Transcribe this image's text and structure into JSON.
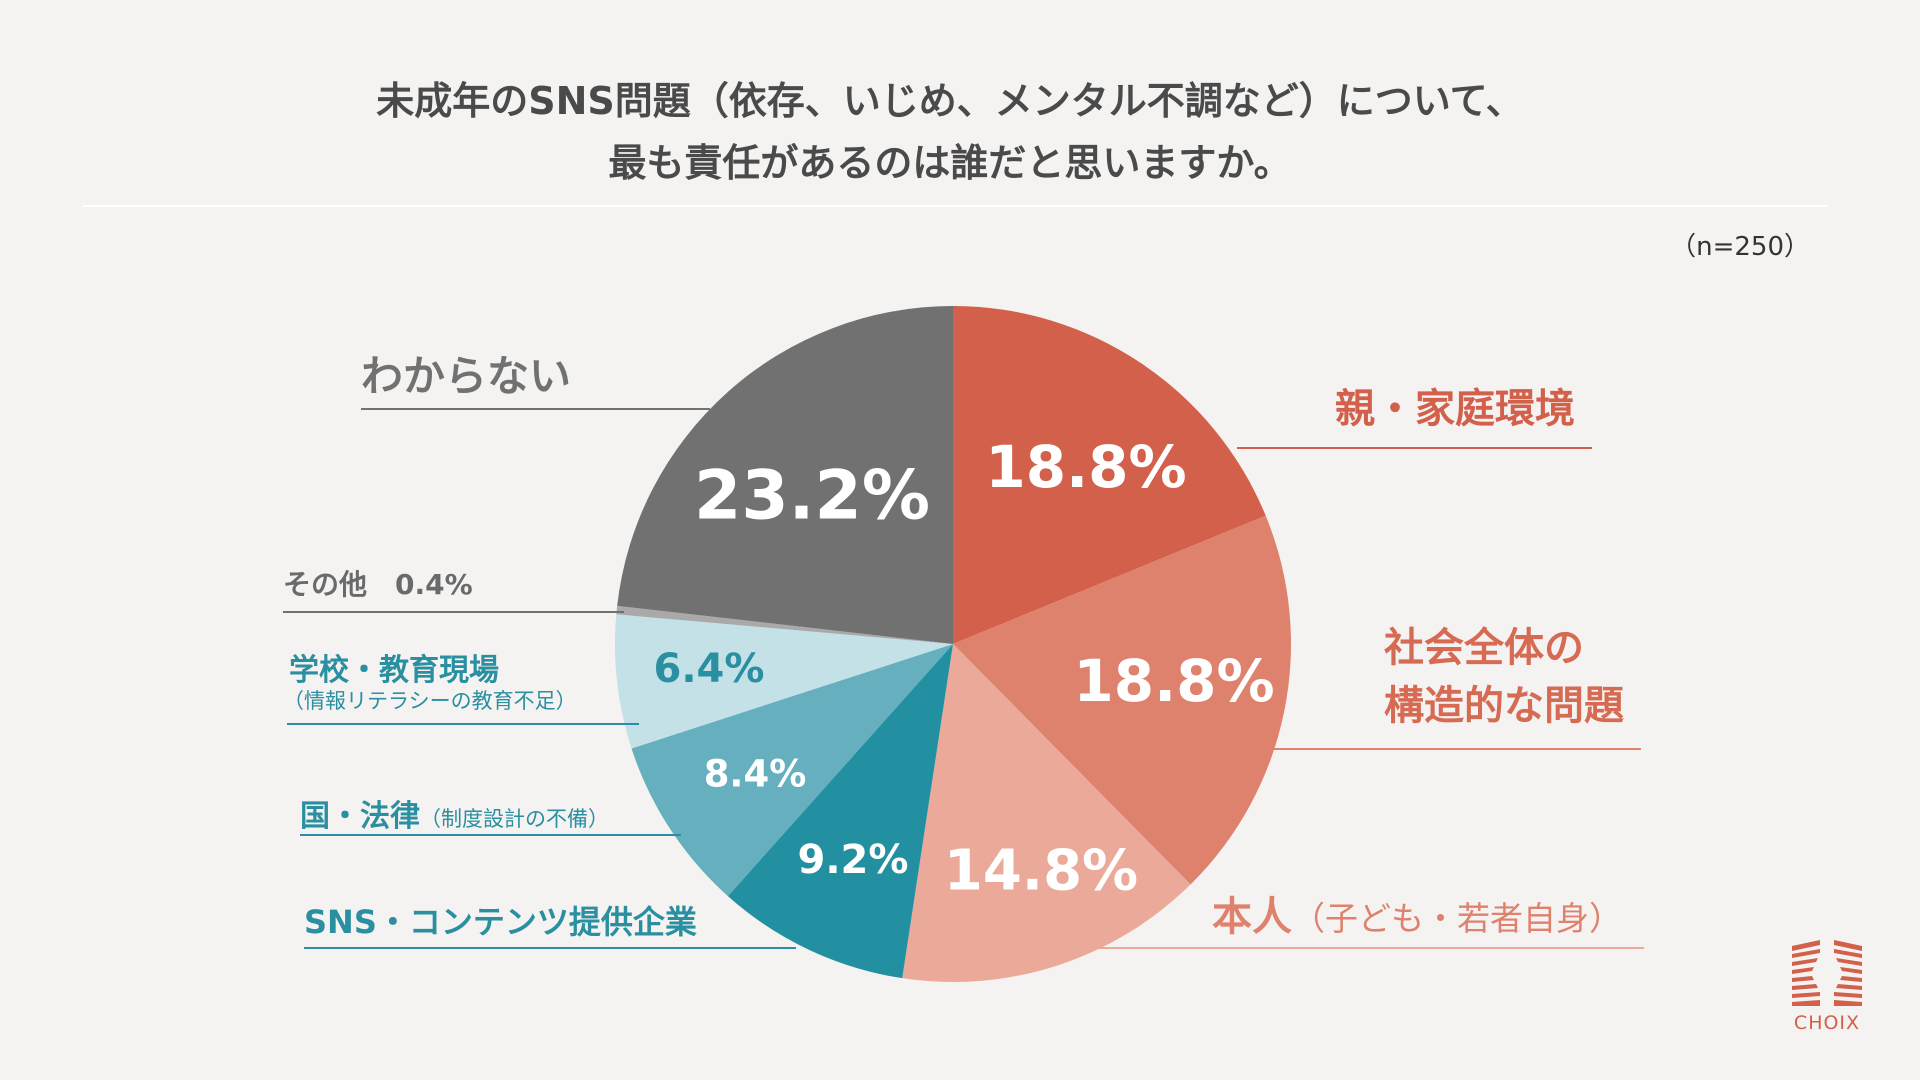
{
  "title": {
    "line1": "未成年のSNS問題（依存、いじめ、メンタル不調など）について、",
    "line2": "最も責任があるのは誰だと思いますか。"
  },
  "sample_size": "（n=250）",
  "logo": {
    "text": "CHOIX",
    "color": "#d2604a"
  },
  "chart_data": {
    "type": "pie",
    "start": "12 o'clock",
    "direction": "clockwise",
    "slices": [
      {
        "label": "親・家庭環境",
        "sublabel": "",
        "value": 18.8,
        "value_label": "18.8%",
        "color": "#d2604a"
      },
      {
        "label": "社会全体の",
        "label2": "構造的な問題",
        "value": 18.8,
        "value_label": "18.8%",
        "color": "#de826d"
      },
      {
        "label": "本人",
        "sublabel": "（子ども・若者自身）",
        "value": 14.8,
        "value_label": "14.8%",
        "color": "#eba999"
      },
      {
        "label": "SNS・コンテンツ提供企業",
        "sublabel": "",
        "value": 9.2,
        "value_label": "9.2%",
        "color": "#2390a2"
      },
      {
        "label": "国・法律",
        "sublabel": "（制度設計の不備）",
        "value": 8.4,
        "value_label": "8.4%",
        "color": "#66afbe"
      },
      {
        "label": "学校・教育現場",
        "sublabel": "（情報リテラシーの教育不足）",
        "value": 6.4,
        "value_label": "6.4%",
        "color": "#c3e1e7"
      },
      {
        "label": "その他",
        "sublabel": "",
        "value": 0.4,
        "value_label": "0.4%",
        "color": "#a9a9a9"
      },
      {
        "label": "わからない",
        "sublabel": "",
        "value": 23.2,
        "value_label": "23.2%",
        "color": "#717171"
      }
    ]
  }
}
